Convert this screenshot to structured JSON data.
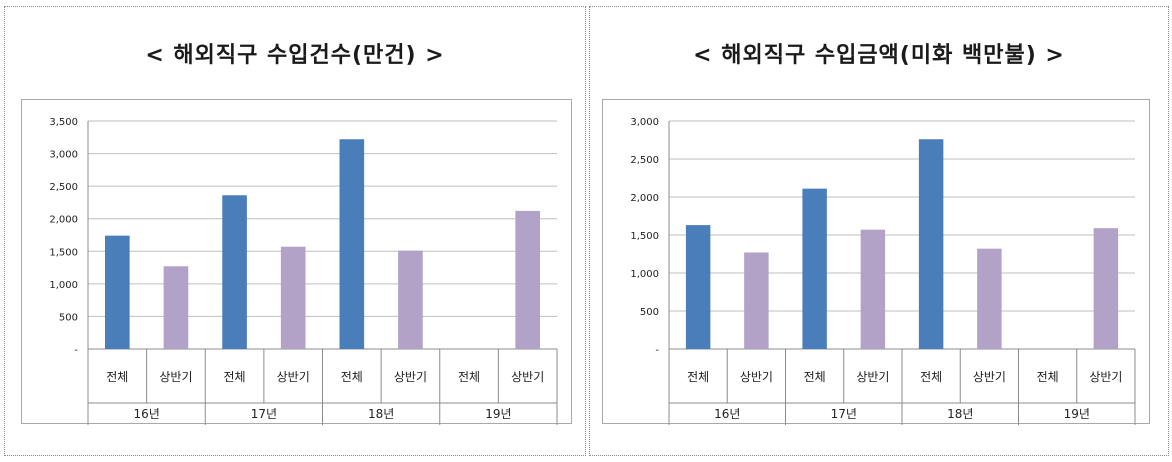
{
  "colors": {
    "total": "#4a7ebb",
    "half": "#b3a2c7",
    "grid": "#bfbfbf",
    "axis": "#8c8c8c"
  },
  "chart_data": [
    {
      "type": "bar",
      "title": "< 해외직구 수입건수(만건) >",
      "groups": [
        "16년",
        "17년",
        "18년",
        "19년"
      ],
      "sub_categories": [
        "전체",
        "상반기"
      ],
      "series": [
        {
          "values": [
            1740,
            2360,
            3220,
            null
          ]
        },
        {
          "values": [
            1270,
            1570,
            1510,
            2120
          ]
        }
      ],
      "yticks": [
        "-",
        "500",
        "1,000",
        "1,500",
        "2,000",
        "2,500",
        "3,000",
        "3,500"
      ],
      "ylim": [
        0,
        3500
      ],
      "ystep": 500,
      "grid": true
    },
    {
      "type": "bar",
      "title": "< 해외직구 수입금액(미화 백만불) >",
      "groups": [
        "16년",
        "17년",
        "18년",
        "19년"
      ],
      "sub_categories": [
        "전체",
        "상반기"
      ],
      "series": [
        {
          "values": [
            1630,
            2110,
            2760,
            null
          ]
        },
        {
          "values": [
            1270,
            1570,
            1320,
            1590
          ]
        }
      ],
      "yticks": [
        "-",
        "500",
        "1,000",
        "1,500",
        "2,000",
        "2,500",
        "3,000"
      ],
      "ylim": [
        0,
        3000
      ],
      "ystep": 500,
      "grid": true
    }
  ]
}
